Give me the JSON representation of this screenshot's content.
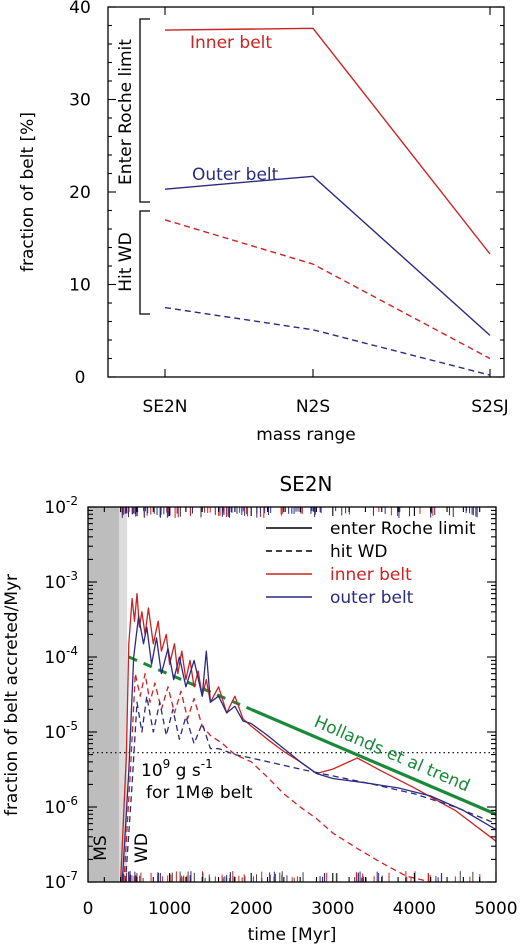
{
  "chart_data": [
    {
      "type": "line",
      "categories": [
        "SE2N",
        "N2S",
        "S2SJ"
      ],
      "xlabel": "mass range",
      "ylabel": "fraction of belt [%]",
      "ylim": [
        0,
        40
      ],
      "yticks": [
        "0",
        "10",
        "20",
        "30",
        "40"
      ],
      "series": [
        {
          "name": "Inner belt",
          "group": "Enter Roche limit",
          "style": "solid",
          "color": "#cc2222",
          "values": [
            37.5,
            37.7,
            13.3
          ]
        },
        {
          "name": "Outer belt",
          "group": "Enter Roche limit",
          "style": "solid",
          "color": "#2a2a80",
          "values": [
            20.3,
            21.7,
            4.5
          ]
        },
        {
          "group": "Hit WD",
          "style": "dashed",
          "color": "#cc2222",
          "values": [
            17.0,
            12.2,
            2.0
          ]
        },
        {
          "group": "Hit WD",
          "style": "dashed",
          "color": "#2a2a80",
          "values": [
            7.5,
            5.1,
            0.2
          ]
        }
      ],
      "annotations": {
        "inner_label": "Inner belt",
        "outer_label": "Outer belt",
        "bracket_top": "Enter Roche limit",
        "bracket_bottom": "Hit WD"
      }
    },
    {
      "type": "line",
      "title": "SE2N",
      "xlabel": "time [Myr]",
      "ylabel": "fraction of belt accreted/Myr",
      "xlim": [
        0,
        5000
      ],
      "ylim": [
        1e-07,
        0.01
      ],
      "yscale": "log",
      "xticks": [
        "0",
        "1000",
        "2000",
        "3000",
        "4000",
        "5000"
      ],
      "yticks": [
        "10-7",
        "10-6",
        "10-5",
        "10-4",
        "10-3",
        "10-2"
      ],
      "legend": {
        "position": "top-right",
        "entries": [
          {
            "label": "enter Roche limit",
            "style": "solid",
            "color": "#000000"
          },
          {
            "label": "hit WD",
            "style": "dashed",
            "color": "#000000"
          },
          {
            "label": "inner belt",
            "style": "solid",
            "color": "#cc2222"
          },
          {
            "label": "outer belt",
            "style": "solid",
            "color": "#2a2a80"
          }
        ]
      },
      "regions": [
        {
          "label": "MS",
          "x": [
            0,
            380
          ],
          "color": "#bdbdbd"
        },
        {
          "label": "WD",
          "x": [
            380,
            480
          ],
          "color": "#dcdcdc"
        }
      ],
      "reference": {
        "y": 5.3e-06,
        "style": "dotted",
        "label_line1": "109 g s-1",
        "label_line2": "for 1M⊕ belt"
      },
      "trend": {
        "label": "Hollands et al trend",
        "color": "#1a8a3a",
        "x": [
          500,
          5000
        ],
        "y": [
          0.0001,
          8e-07
        ]
      },
      "series": [
        {
          "name": "inner belt – enter Roche limit",
          "style": "solid",
          "color": "#cc2222",
          "x": [
            400,
            470,
            500,
            540,
            570,
            600,
            630,
            660,
            700,
            740,
            800,
            860,
            900,
            960,
            1000,
            1060,
            1100,
            1150,
            1200,
            1250,
            1300,
            1350,
            1400,
            1450,
            1500,
            1600,
            1700,
            1800,
            1900,
            2000,
            2200,
            2400,
            2600,
            2800,
            3000,
            3300,
            3600,
            4000,
            4500,
            5000
          ],
          "y": [
            1e-07,
            5e-06,
            0.00015,
            0.0006,
            0.0003,
            0.0007,
            0.00025,
            0.0004,
            0.0002,
            0.00045,
            0.00015,
            0.0003,
            0.00012,
            0.0002,
            8e-05,
            0.00015,
            6e-05,
            0.00012,
            5e-05,
            9e-05,
            4e-05,
            6.5e-05,
            3e-05,
            5e-05,
            2.5e-05,
            4e-05,
            1.8e-05,
            3e-05,
            1.5e-05,
            1.2e-05,
            8e-06,
            5.5e-06,
            4e-06,
            2.8e-06,
            3.2e-06,
            4.5e-06,
            3e-06,
            1.8e-06,
            9e-07,
            3.5e-07
          ]
        },
        {
          "name": "outer belt – enter Roche limit",
          "style": "solid",
          "color": "#2a2a80",
          "x": [
            420,
            500,
            560,
            620,
            680,
            720,
            780,
            840,
            900,
            980,
            1050,
            1120,
            1200,
            1300,
            1400,
            1450,
            1500,
            1600,
            1700,
            1800,
            1900,
            2000,
            2200,
            2400,
            2600,
            2800,
            3000,
            3400,
            3800,
            4200,
            4600,
            5000
          ],
          "y": [
            1e-07,
            3e-06,
            0.0001,
            0.00035,
            0.00015,
            0.00025,
            8e-05,
            0.00018,
            6e-05,
            0.00013,
            5e-05,
            0.0001,
            4e-05,
            9e-05,
            3e-05,
            0.00012,
            2.5e-05,
            3e-05,
            1.8e-05,
            2.2e-05,
            1.4e-05,
            1.3e-05,
            9e-06,
            6e-06,
            4e-06,
            2.8e-06,
            2.4e-06,
            2.1e-06,
            1.8e-06,
            1.4e-06,
            9e-07,
            5e-07
          ]
        },
        {
          "name": "inner belt – hit WD",
          "style": "dashed",
          "color": "#cc2222",
          "x": [
            440,
            520,
            580,
            640,
            700,
            760,
            820,
            900,
            980,
            1060,
            1140,
            1220,
            1300,
            1400,
            1500,
            1650,
            1800,
            2000,
            2200,
            2400,
            2600,
            2800,
            3000,
            3300,
            3600,
            3900,
            4200
          ],
          "y": [
            1e-07,
            3e-06,
            6e-05,
            3e-05,
            6e-05,
            2.5e-05,
            4.5e-05,
            2e-05,
            4e-05,
            1.8e-05,
            3.5e-05,
            1.5e-05,
            2.8e-05,
            1.2e-05,
            9e-06,
            7e-06,
            5e-06,
            4e-06,
            2.5e-06,
            1.5e-06,
            1e-06,
            7e-07,
            4.5e-07,
            2.8e-07,
            1.8e-07,
            1.2e-07,
            1e-07
          ]
        },
        {
          "name": "outer belt – hit WD",
          "style": "dashed",
          "color": "#2a2a80",
          "x": [
            460,
            540,
            600,
            660,
            720,
            800,
            880,
            960,
            1040,
            1120,
            1200,
            1300,
            1400,
            1500,
            1600,
            1800,
            2000,
            2300,
            2600,
            3000,
            3500,
            4000,
            4500,
            5000
          ],
          "y": [
            1e-07,
            2e-06,
            2.5e-05,
            1e-05,
            3e-05,
            1e-05,
            2.5e-05,
            9e-06,
            2e-05,
            8e-06,
            1.6e-05,
            7e-06,
            1.3e-05,
            6e-06,
            6e-06,
            5e-06,
            4.5e-06,
            3.8e-06,
            3.2e-06,
            2.6e-06,
            2e-06,
            1.5e-06,
            1e-06,
            6e-07
          ]
        }
      ]
    }
  ]
}
